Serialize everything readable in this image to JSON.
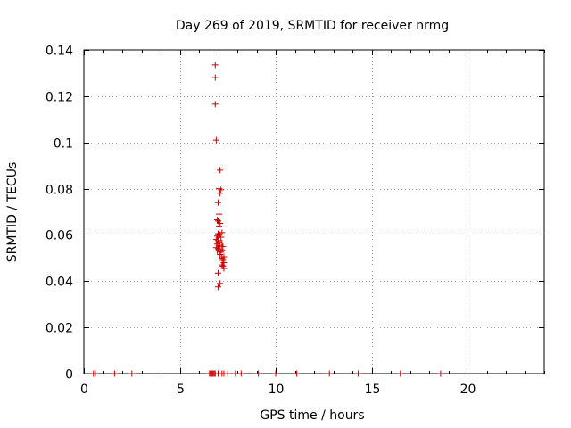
{
  "colors": {
    "marker": "#cc0000",
    "grid": "#a0a0a0",
    "axis": "#000000",
    "background": "#ffffff"
  },
  "chart_data": {
    "type": "scatter",
    "title": "Day 269 of 2019, SRMTID for receiver nrmg",
    "xlabel": "GPS time / hours",
    "ylabel": "SRMTID / TECUs",
    "xlim": [
      0,
      24
    ],
    "ylim": [
      0,
      0.14
    ],
    "xticks": [
      0,
      5,
      10,
      15,
      20
    ],
    "xtick_labels": [
      "0",
      "5",
      "10",
      "15",
      "20"
    ],
    "yticks": [
      0,
      0.02,
      0.04,
      0.06,
      0.08,
      0.1,
      0.12,
      0.14
    ],
    "ytick_labels": [
      "0",
      "0.02",
      "0.04",
      "0.06",
      "0.08",
      "0.1",
      "0.12",
      "0.14"
    ],
    "grid": true,
    "marker": "+",
    "series": [
      {
        "name": "SRMTID",
        "points": [
          [
            0.5,
            0
          ],
          [
            0.6,
            0
          ],
          [
            1.6,
            0
          ],
          [
            2.5,
            0
          ],
          [
            6.55,
            0
          ],
          [
            6.6,
            0
          ],
          [
            6.65,
            0
          ],
          [
            6.7,
            0
          ],
          [
            6.75,
            0
          ],
          [
            6.8,
            0
          ],
          [
            6.85,
            0
          ],
          [
            7.0,
            0
          ],
          [
            7.2,
            0
          ],
          [
            7.3,
            0
          ],
          [
            7.5,
            0
          ],
          [
            7.9,
            0
          ],
          [
            8.2,
            0
          ],
          [
            9.1,
            0
          ],
          [
            10.0,
            0
          ],
          [
            11.1,
            0
          ],
          [
            12.8,
            0
          ],
          [
            14.3,
            0
          ],
          [
            16.5,
            0
          ],
          [
            18.6,
            0
          ],
          [
            6.85,
            0.1335
          ],
          [
            6.85,
            0.128
          ],
          [
            6.85,
            0.1165
          ],
          [
            6.9,
            0.101
          ],
          [
            7.05,
            0.0885
          ],
          [
            7.1,
            0.088
          ],
          [
            7.05,
            0.08
          ],
          [
            7.15,
            0.0795
          ],
          [
            7.1,
            0.078
          ],
          [
            7.0,
            0.074
          ],
          [
            7.05,
            0.069
          ],
          [
            6.95,
            0.0665
          ],
          [
            7.0,
            0.066
          ],
          [
            7.1,
            0.065
          ],
          [
            7.05,
            0.0635
          ],
          [
            7.2,
            0.061
          ],
          [
            7.0,
            0.0605
          ],
          [
            7.1,
            0.06
          ],
          [
            6.95,
            0.0595
          ],
          [
            7.15,
            0.059
          ],
          [
            6.9,
            0.058
          ],
          [
            7.0,
            0.0575
          ],
          [
            7.05,
            0.057
          ],
          [
            7.2,
            0.0565
          ],
          [
            6.95,
            0.056
          ],
          [
            7.1,
            0.0555
          ],
          [
            7.25,
            0.055
          ],
          [
            6.9,
            0.0545
          ],
          [
            7.0,
            0.054
          ],
          [
            7.2,
            0.0535
          ],
          [
            6.95,
            0.053
          ],
          [
            7.15,
            0.0525
          ],
          [
            7.1,
            0.0515
          ],
          [
            7.3,
            0.0505
          ],
          [
            7.2,
            0.05
          ],
          [
            7.25,
            0.049
          ],
          [
            7.3,
            0.048
          ],
          [
            7.2,
            0.047
          ],
          [
            7.25,
            0.0465
          ],
          [
            7.3,
            0.0455
          ],
          [
            7.0,
            0.0435
          ],
          [
            7.1,
            0.039
          ],
          [
            7.0,
            0.0375
          ]
        ]
      }
    ]
  }
}
